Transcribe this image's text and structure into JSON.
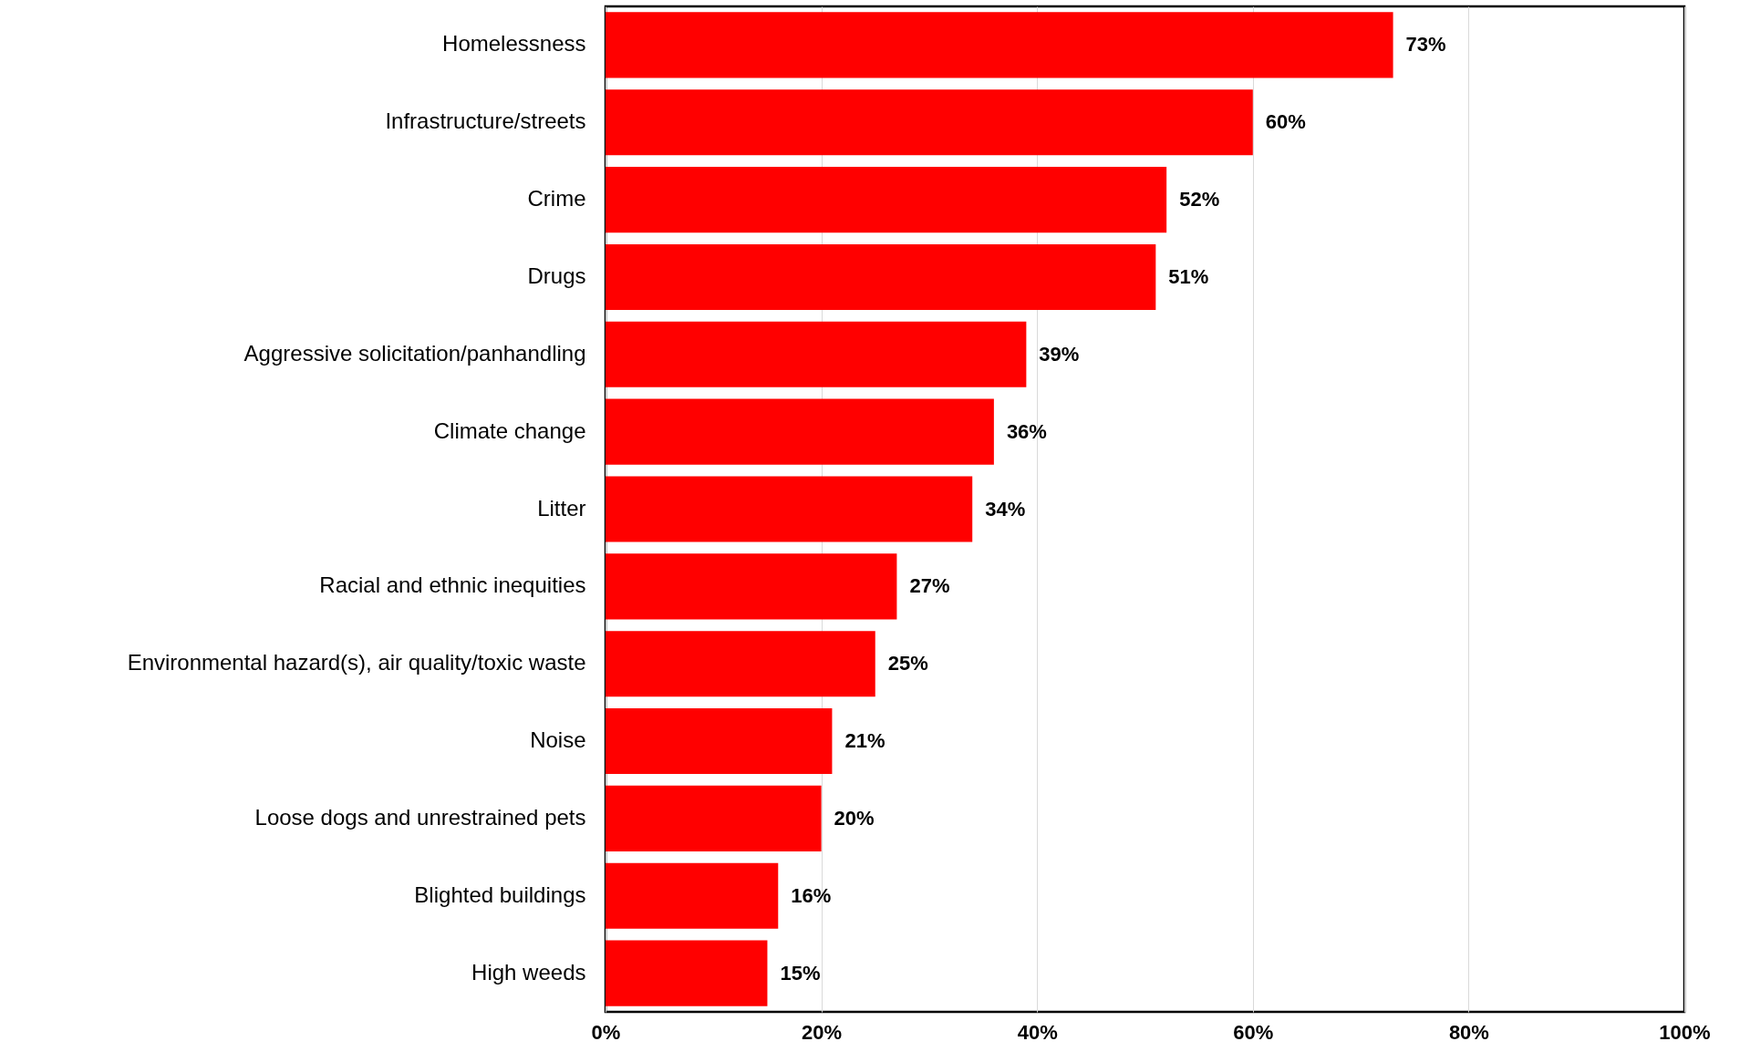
{
  "chart_data": {
    "type": "bar",
    "orientation": "horizontal",
    "categories": [
      "Homelessness",
      "Infrastructure/streets",
      "Crime",
      "Drugs",
      "Aggressive solicitation/panhandling",
      "Climate change",
      "Litter",
      "Racial and ethnic inequities",
      "Environmental hazard(s), air quality/toxic waste",
      "Noise",
      "Loose dogs and unrestrained pets",
      "Blighted buildings",
      "High weeds"
    ],
    "values": [
      73,
      60,
      52,
      51,
      39,
      36,
      34,
      27,
      25,
      21,
      20,
      16,
      15
    ],
    "value_labels": [
      "73%",
      "60%",
      "52%",
      "51%",
      "39%",
      "36%",
      "34%",
      "27%",
      "25%",
      "21%",
      "20%",
      "16%",
      "15%"
    ],
    "color": "#ff0000",
    "xlim": [
      0,
      100
    ],
    "xticks": [
      {
        "value": 0,
        "label": "0%"
      },
      {
        "value": 20,
        "label": "20%"
      },
      {
        "value": 40,
        "label": "40%"
      },
      {
        "value": 60,
        "label": "60%"
      },
      {
        "value": 80,
        "label": "80%"
      },
      {
        "value": 100,
        "label": "100%"
      }
    ],
    "grid": "x"
  }
}
